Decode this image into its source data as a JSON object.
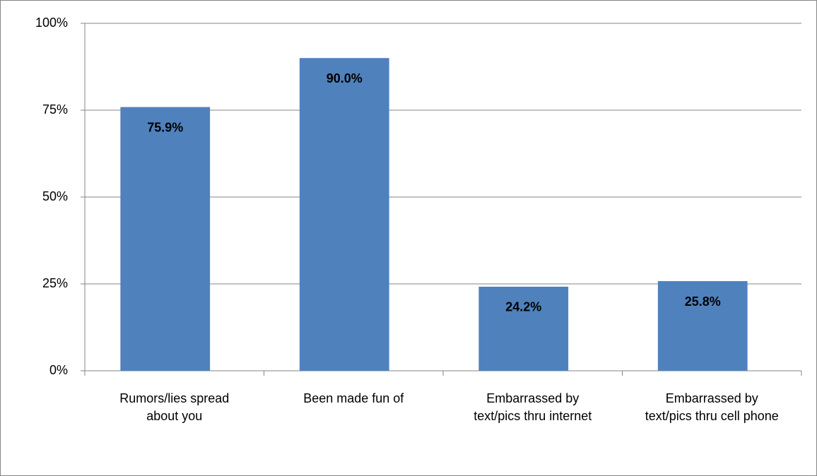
{
  "chart_data": {
    "type": "bar",
    "categories": [
      "Rumors/lies spread about you",
      "Been made fun of",
      "Embarrassed by text/pics thru internet",
      "Embarrassed by text/pics thru cell phone"
    ],
    "values": [
      75.9,
      90.0,
      24.2,
      25.8
    ],
    "value_labels": [
      "75.9%",
      "90.0%",
      "24.2%",
      "25.8%"
    ],
    "color": "#4f81bd",
    "ylim": [
      0,
      100
    ],
    "yticks": [
      {
        "value": 0,
        "label": "0%"
      },
      {
        "value": 25,
        "label": "25%"
      },
      {
        "value": 50,
        "label": "50%"
      },
      {
        "value": 75,
        "label": "75%"
      },
      {
        "value": 100,
        "label": "100%"
      }
    ],
    "grid": true
  }
}
